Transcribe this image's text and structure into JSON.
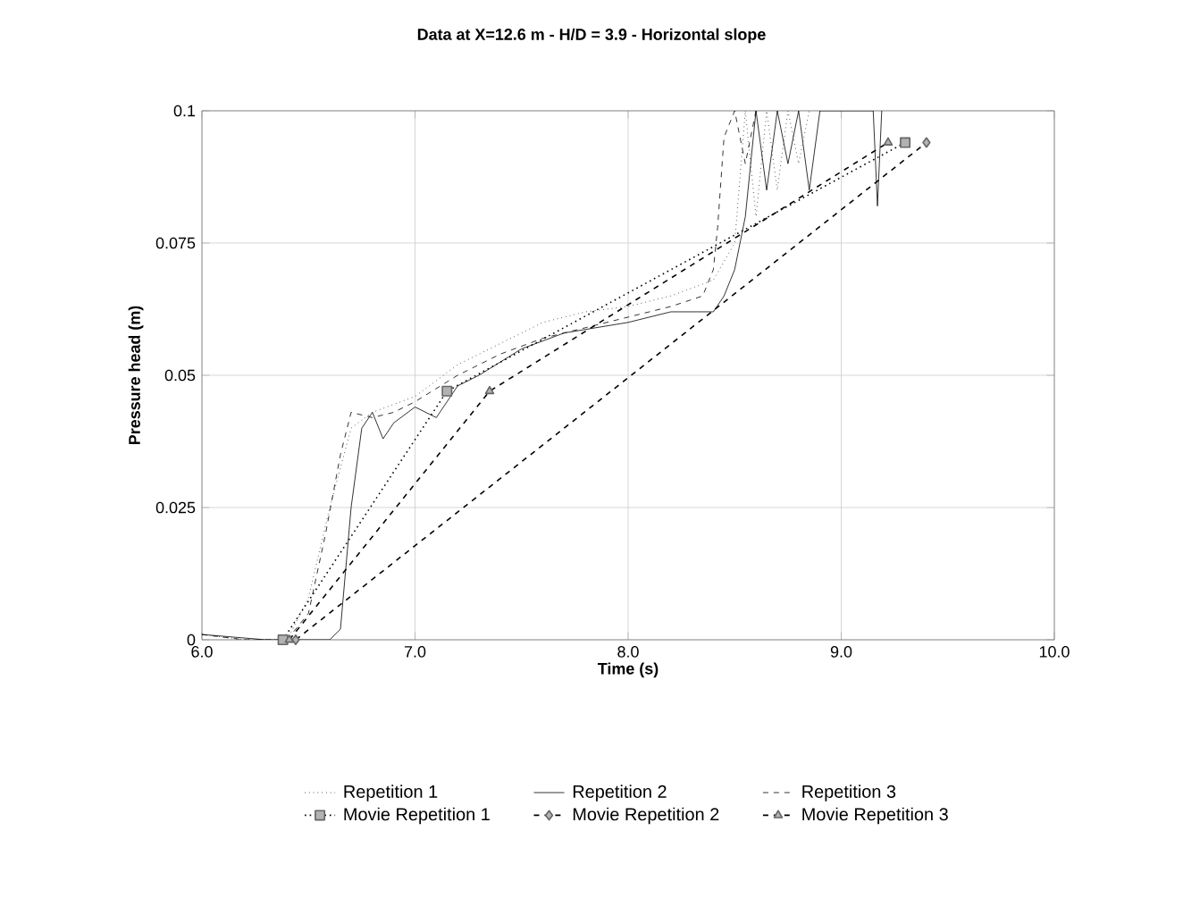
{
  "chart_data": {
    "type": "line",
    "title": "Data at X=12.6 m - H/D = 3.9 - Horizontal slope",
    "xlabel": "Time (s)",
    "ylabel": "Pressure head (m)",
    "xlim": [
      6.0,
      10.0
    ],
    "xticks": [
      {
        "value": 6,
        "label": "6.0"
      },
      {
        "value": 7,
        "label": "7.0"
      },
      {
        "value": 8,
        "label": "8.0"
      },
      {
        "value": 9,
        "label": "9.0"
      },
      {
        "value": 10,
        "label": "10.0"
      }
    ],
    "ylim": [
      0,
      0.1
    ],
    "yticks": [
      0,
      0.025,
      0.05,
      0.075,
      0.1
    ],
    "grid": true,
    "legend": "bottom",
    "series": [
      {
        "name": "Repetition 1",
        "color": "#000000",
        "line_style": "dotted",
        "marker": "none",
        "x": [
          6.0,
          6.2,
          6.4,
          6.5,
          6.6,
          6.7,
          6.8,
          7.0,
          7.2,
          7.4,
          7.6,
          7.8,
          8.0,
          8.2,
          8.4,
          8.5,
          8.55,
          8.6,
          8.65,
          8.7,
          8.75,
          8.8,
          8.85
        ],
        "values": [
          0.001,
          0.0,
          0.0,
          0.008,
          0.025,
          0.04,
          0.043,
          0.046,
          0.052,
          0.056,
          0.06,
          0.062,
          0.063,
          0.065,
          0.068,
          0.075,
          0.1,
          0.08,
          0.1,
          0.085,
          0.1,
          0.09,
          0.1
        ]
      },
      {
        "name": "Repetition 2",
        "color": "#000000",
        "line_style": "solid",
        "marker": "none",
        "x": [
          6.0,
          6.3,
          6.6,
          6.65,
          6.7,
          6.75,
          6.8,
          6.85,
          6.9,
          7.0,
          7.1,
          7.2,
          7.3,
          7.5,
          7.7,
          8.0,
          8.2,
          8.4,
          8.45,
          8.5,
          8.55,
          8.6,
          8.65,
          8.7,
          8.75,
          8.8,
          8.85,
          8.9,
          9.15,
          9.17,
          9.19
        ],
        "values": [
          0.001,
          0.0,
          0.0,
          0.002,
          0.025,
          0.04,
          0.043,
          0.038,
          0.041,
          0.044,
          0.042,
          0.048,
          0.05,
          0.055,
          0.058,
          0.06,
          0.062,
          0.062,
          0.065,
          0.07,
          0.08,
          0.1,
          0.085,
          0.1,
          0.09,
          0.1,
          0.085,
          0.1,
          0.1,
          0.082,
          0.1
        ]
      },
      {
        "name": "Repetition 3",
        "color": "#000000",
        "line_style": "dashed",
        "marker": "none",
        "x": [
          6.0,
          6.2,
          6.4,
          6.5,
          6.58,
          6.65,
          6.7,
          6.8,
          6.9,
          7.0,
          7.2,
          7.4,
          7.6,
          7.8,
          8.0,
          8.2,
          8.35,
          8.4,
          8.42,
          8.45,
          8.5,
          8.55,
          8.6
        ],
        "values": [
          0.001,
          0.0,
          0.0,
          0.005,
          0.02,
          0.035,
          0.043,
          0.042,
          0.043,
          0.045,
          0.05,
          0.054,
          0.057,
          0.059,
          0.061,
          0.063,
          0.065,
          0.07,
          0.078,
          0.095,
          0.1,
          0.09,
          0.1
        ]
      },
      {
        "name": "Movie Repetition 1",
        "color": "#000000",
        "line_style": "dotted",
        "marker": "square",
        "x": [
          6.38,
          7.15,
          9.3
        ],
        "values": [
          0.0,
          0.047,
          0.094
        ]
      },
      {
        "name": "Movie Repetition 2",
        "color": "#000000",
        "line_style": "dashed",
        "marker": "diamond",
        "x": [
          6.44,
          9.4
        ],
        "values": [
          0.0,
          0.094
        ]
      },
      {
        "name": "Movie Repetition 3",
        "color": "#000000",
        "line_style": "dashed",
        "marker": "triangle",
        "x": [
          6.41,
          7.35,
          9.22
        ],
        "values": [
          0.0,
          0.047,
          0.094
        ]
      }
    ]
  }
}
